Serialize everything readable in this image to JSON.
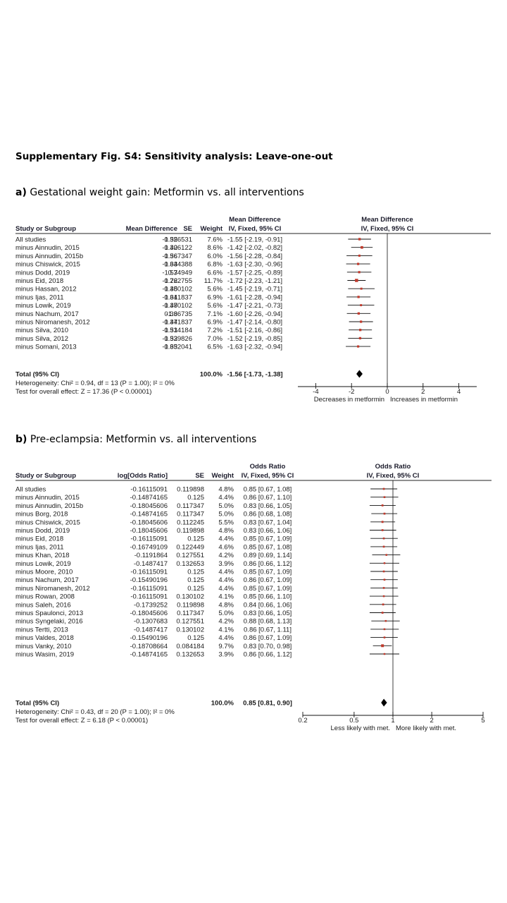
{
  "page_title": "Supplementary Fig. S4: Sensitivity analysis: Leave-one-out",
  "sections": [
    {
      "letter": "a)",
      "title": "Gestational weight gain: Metformin vs. all interventions"
    },
    {
      "letter": "b)",
      "title": "Pre-eclampsia: Metformin vs. all interventions"
    }
  ],
  "chart_data": [
    {
      "type": "forest",
      "headers": {
        "study": "Study or Subgroup",
        "estimate": "Mean Difference",
        "se": "SE",
        "weight": "Weight",
        "effect_top": "Mean Difference",
        "effect_bottom": "IV, Fixed, 95% CI",
        "plot_top": "Mean Difference",
        "plot_bottom": "IV, Fixed, 95% CI"
      },
      "rows": [
        {
          "study": "All studies",
          "estimate": "-1.55",
          "se": "0.326531",
          "weight": "7.6%",
          "ci_text": "-1.55 [-2.19, -0.91]",
          "md": -1.55,
          "lo": -2.19,
          "hi": -0.91
        },
        {
          "study": "minus Ainnudin, 2015",
          "estimate": "-1.42",
          "se": "0.306122",
          "weight": "8.6%",
          "ci_text": "-1.42 [-2.02, -0.82]",
          "md": -1.42,
          "lo": -2.02,
          "hi": -0.82
        },
        {
          "study": "minus Ainnudin, 2015b",
          "estimate": "-1.56",
          "se": "0.367347",
          "weight": "6.0%",
          "ci_text": "-1.56 [-2.28, -0.84]",
          "md": -1.56,
          "lo": -2.28,
          "hi": -0.84
        },
        {
          "study": "minus Chiswick, 2015",
          "estimate": "-1.63",
          "se": "0.344388",
          "weight": "6.8%",
          "ci_text": "-1.63 [-2.30, -0.96]",
          "md": -1.63,
          "lo": -2.3,
          "hi": -0.96
        },
        {
          "study": "minus Dodd, 2019",
          "estimate": "-1.57",
          "se": "0.34949",
          "weight": "6.6%",
          "ci_text": "-1.57 [-2.25, -0.89]",
          "md": -1.57,
          "lo": -2.25,
          "hi": -0.89
        },
        {
          "study": "minus Eid, 2018",
          "estimate": "-1.72",
          "se": "0.262755",
          "weight": "11.7%",
          "ci_text": "-1.72 [-2.23, -1.21]",
          "md": -1.72,
          "lo": -2.23,
          "hi": -1.21
        },
        {
          "study": "minus Hassan, 2012",
          "estimate": "-1.45",
          "se": "0.380102",
          "weight": "5.6%",
          "ci_text": "-1.45 [-2.19, -0.71]",
          "md": -1.45,
          "lo": -2.19,
          "hi": -0.71
        },
        {
          "study": "minus Ijas, 2011",
          "estimate": "-1.61",
          "se": "0.341837",
          "weight": "6.9%",
          "ci_text": "-1.61 [-2.28, -0.94]",
          "md": -1.61,
          "lo": -2.28,
          "hi": -0.94
        },
        {
          "study": "minus Lowik, 2019",
          "estimate": "-1.47",
          "se": "0.380102",
          "weight": "5.6%",
          "ci_text": "-1.47 [-2.21, -0.73]",
          "md": -1.47,
          "lo": -2.21,
          "hi": -0.73
        },
        {
          "study": "minus Nachum, 2017",
          "estimate": "-1.6",
          "se": "0.336735",
          "weight": "7.1%",
          "ci_text": "-1.60 [-2.26, -0.94]",
          "md": -1.6,
          "lo": -2.26,
          "hi": -0.94
        },
        {
          "study": "minus Niromanesh, 2012",
          "estimate": "-1.47",
          "se": "0.341837",
          "weight": "6.9%",
          "ci_text": "-1.47 [-2.14, -0.80]",
          "md": -1.47,
          "lo": -2.14,
          "hi": -0.8
        },
        {
          "study": "minus Silva, 2010",
          "estimate": "-1.51",
          "se": "0.334184",
          "weight": "7.2%",
          "ci_text": "-1.51 [-2.16, -0.86]",
          "md": -1.51,
          "lo": -2.16,
          "hi": -0.86
        },
        {
          "study": "minus Silva, 2012",
          "estimate": "-1.52",
          "se": "0.339826",
          "weight": "7.0%",
          "ci_text": "-1.52 [-2.19, -0.85]",
          "md": -1.52,
          "lo": -2.19,
          "hi": -0.85
        },
        {
          "study": "minus Somani, 2013",
          "estimate": "-1.63",
          "se": "0.352041",
          "weight": "6.5%",
          "ci_text": "-1.63 [-2.32, -0.94]",
          "md": -1.63,
          "lo": -2.32,
          "hi": -0.94
        }
      ],
      "total": {
        "label": "Total (95% CI)",
        "weight": "100.0%",
        "ci_text": "-1.56 [-1.73, -1.38]",
        "md": -1.56,
        "lo": -1.73,
        "hi": -1.38
      },
      "heterogeneity": "Heterogeneity: Chi² = 0.94, df = 13 (P = 1.00); I² = 0%",
      "overall_effect": "Test for overall effect: Z = 17.36 (P < 0.00001)",
      "scale": "linear",
      "xlim": [
        -5,
        5
      ],
      "ticks": [
        {
          "v": -4,
          "label": "-4"
        },
        {
          "v": -2,
          "label": "-2"
        },
        {
          "v": 0,
          "label": "0"
        },
        {
          "v": 2,
          "label": "2"
        },
        {
          "v": 4,
          "label": "4"
        }
      ],
      "null_value": 0,
      "favours_left": "Decreases in metformin",
      "favours_right": "Increases in metformin"
    },
    {
      "type": "forest",
      "headers": {
        "study": "Study or Subgroup",
        "estimate": "log[Odds Ratio]",
        "se": "SE",
        "weight": "Weight",
        "effect_top": "Odds Ratio",
        "effect_bottom": "IV, Fixed, 95% CI",
        "plot_top": "Odds Ratio",
        "plot_bottom": "IV, Fixed, 95% CI"
      },
      "rows": [
        {
          "study": "All studies",
          "estimate": "-0.16115091",
          "se": "0.119898",
          "weight": "4.8%",
          "ci_text": "0.85 [0.67, 1.08]",
          "md": 0.85,
          "lo": 0.67,
          "hi": 1.08
        },
        {
          "study": "minus Ainnudin, 2015",
          "estimate": "-0.14874165",
          "se": "0.125",
          "weight": "4.4%",
          "ci_text": "0.86 [0.67, 1.10]",
          "md": 0.86,
          "lo": 0.67,
          "hi": 1.1
        },
        {
          "study": "minus Ainnudin, 2015b",
          "estimate": "-0.18045606",
          "se": "0.117347",
          "weight": "5.0%",
          "ci_text": "0.83 [0.66, 1.05]",
          "md": 0.83,
          "lo": 0.66,
          "hi": 1.05
        },
        {
          "study": "minus Borg, 2018",
          "estimate": "-0.14874165",
          "se": "0.117347",
          "weight": "5.0%",
          "ci_text": "0.86 [0.68, 1.08]",
          "md": 0.86,
          "lo": 0.68,
          "hi": 1.08
        },
        {
          "study": "minus Chiswick, 2015",
          "estimate": "-0.18045606",
          "se": "0.112245",
          "weight": "5.5%",
          "ci_text": "0.83 [0.67, 1.04]",
          "md": 0.83,
          "lo": 0.67,
          "hi": 1.04
        },
        {
          "study": "minus Dodd, 2019",
          "estimate": "-0.18045606",
          "se": "0.119898",
          "weight": "4.8%",
          "ci_text": "0.83 [0.66, 1.06]",
          "md": 0.83,
          "lo": 0.66,
          "hi": 1.06
        },
        {
          "study": "minus Eid, 2018",
          "estimate": "-0.16115091",
          "se": "0.125",
          "weight": "4.4%",
          "ci_text": "0.85 [0.67, 1.09]",
          "md": 0.85,
          "lo": 0.67,
          "hi": 1.09
        },
        {
          "study": "minus Ijas, 2011",
          "estimate": "-0.16749109",
          "se": "0.122449",
          "weight": "4.6%",
          "ci_text": "0.85 [0.67, 1.08]",
          "md": 0.85,
          "lo": 0.67,
          "hi": 1.08
        },
        {
          "study": "minus Khan, 2018",
          "estimate": "-0.1191864",
          "se": "0.127551",
          "weight": "4.2%",
          "ci_text": "0.89 [0.69, 1.14]",
          "md": 0.89,
          "lo": 0.69,
          "hi": 1.14
        },
        {
          "study": "minus Lowik, 2019",
          "estimate": "-0.1487417",
          "se": "0.132653",
          "weight": "3.9%",
          "ci_text": "0.86 [0.66, 1.12]",
          "md": 0.86,
          "lo": 0.66,
          "hi": 1.12
        },
        {
          "study": "minus Moore, 2010",
          "estimate": "-0.16115091",
          "se": "0.125",
          "weight": "4.4%",
          "ci_text": "0.85 [0.67, 1.09]",
          "md": 0.85,
          "lo": 0.67,
          "hi": 1.09
        },
        {
          "study": "minus Nachum, 2017",
          "estimate": "-0.15490196",
          "se": "0.125",
          "weight": "4.4%",
          "ci_text": "0.86 [0.67, 1.09]",
          "md": 0.86,
          "lo": 0.67,
          "hi": 1.09
        },
        {
          "study": "minus Niromanesh, 2012",
          "estimate": "-0.16115091",
          "se": "0.125",
          "weight": "4.4%",
          "ci_text": "0.85 [0.67, 1.09]",
          "md": 0.85,
          "lo": 0.67,
          "hi": 1.09
        },
        {
          "study": "minus Rowan, 2008",
          "estimate": "-0.16115091",
          "se": "0.130102",
          "weight": "4.1%",
          "ci_text": "0.85 [0.66, 1.10]",
          "md": 0.85,
          "lo": 0.66,
          "hi": 1.1
        },
        {
          "study": "minus Saleh, 2016",
          "estimate": "-0.1739252",
          "se": "0.119898",
          "weight": "4.8%",
          "ci_text": "0.84 [0.66, 1.06]",
          "md": 0.84,
          "lo": 0.66,
          "hi": 1.06
        },
        {
          "study": "minus Spaulonci, 2013",
          "estimate": "-0.18045606",
          "se": "0.117347",
          "weight": "5.0%",
          "ci_text": "0.83 [0.66, 1.05]",
          "md": 0.83,
          "lo": 0.66,
          "hi": 1.05
        },
        {
          "study": "minus Syngelaki, 2016",
          "estimate": "-0.1307683",
          "se": "0.127551",
          "weight": "4.2%",
          "ci_text": "0.88 [0.68, 1.13]",
          "md": 0.88,
          "lo": 0.68,
          "hi": 1.13
        },
        {
          "study": "minus Tertti, 2013",
          "estimate": "-0.1487417",
          "se": "0.130102",
          "weight": "4.1%",
          "ci_text": "0.86 [0.67, 1.11]",
          "md": 0.86,
          "lo": 0.67,
          "hi": 1.11
        },
        {
          "study": "minus Valdes, 2018",
          "estimate": "-0.15490196",
          "se": "0.125",
          "weight": "4.4%",
          "ci_text": "0.86 [0.67, 1.09]",
          "md": 0.86,
          "lo": 0.67,
          "hi": 1.09
        },
        {
          "study": "minus Vanky, 2010",
          "estimate": "-0.18708664",
          "se": "0.084184",
          "weight": "9.7%",
          "ci_text": "0.83 [0.70, 0.98]",
          "md": 0.83,
          "lo": 0.7,
          "hi": 0.98
        },
        {
          "study": "minus Wasim, 2019",
          "estimate": "-0.14874165",
          "se": "0.132653",
          "weight": "3.9%",
          "ci_text": "0.86 [0.66, 1.12]",
          "md": 0.86,
          "lo": 0.66,
          "hi": 1.12
        }
      ],
      "total": {
        "label": "Total (95% CI)",
        "weight": "100.0%",
        "ci_text": "0.85 [0.81, 0.90]",
        "md": 0.85,
        "lo": 0.81,
        "hi": 0.9
      },
      "heterogeneity": "Heterogeneity: Chi² = 0.43, df = 20 (P = 1.00); I² = 0%",
      "overall_effect": "Test for overall effect: Z = 6.18 (P < 0.00001)",
      "scale": "log",
      "xlim": [
        0.2,
        5
      ],
      "ticks": [
        {
          "v": 0.2,
          "label": "0.2"
        },
        {
          "v": 0.5,
          "label": "0.5"
        },
        {
          "v": 1,
          "label": "1"
        },
        {
          "v": 2,
          "label": "2"
        },
        {
          "v": 5,
          "label": "5"
        }
      ],
      "null_value": 1,
      "favours_left": "Less likely with met.",
      "favours_right": "More likely with met."
    }
  ],
  "colors": {
    "marker": "#c0392b",
    "text": "#1a1a1a",
    "rule": "#222222"
  }
}
